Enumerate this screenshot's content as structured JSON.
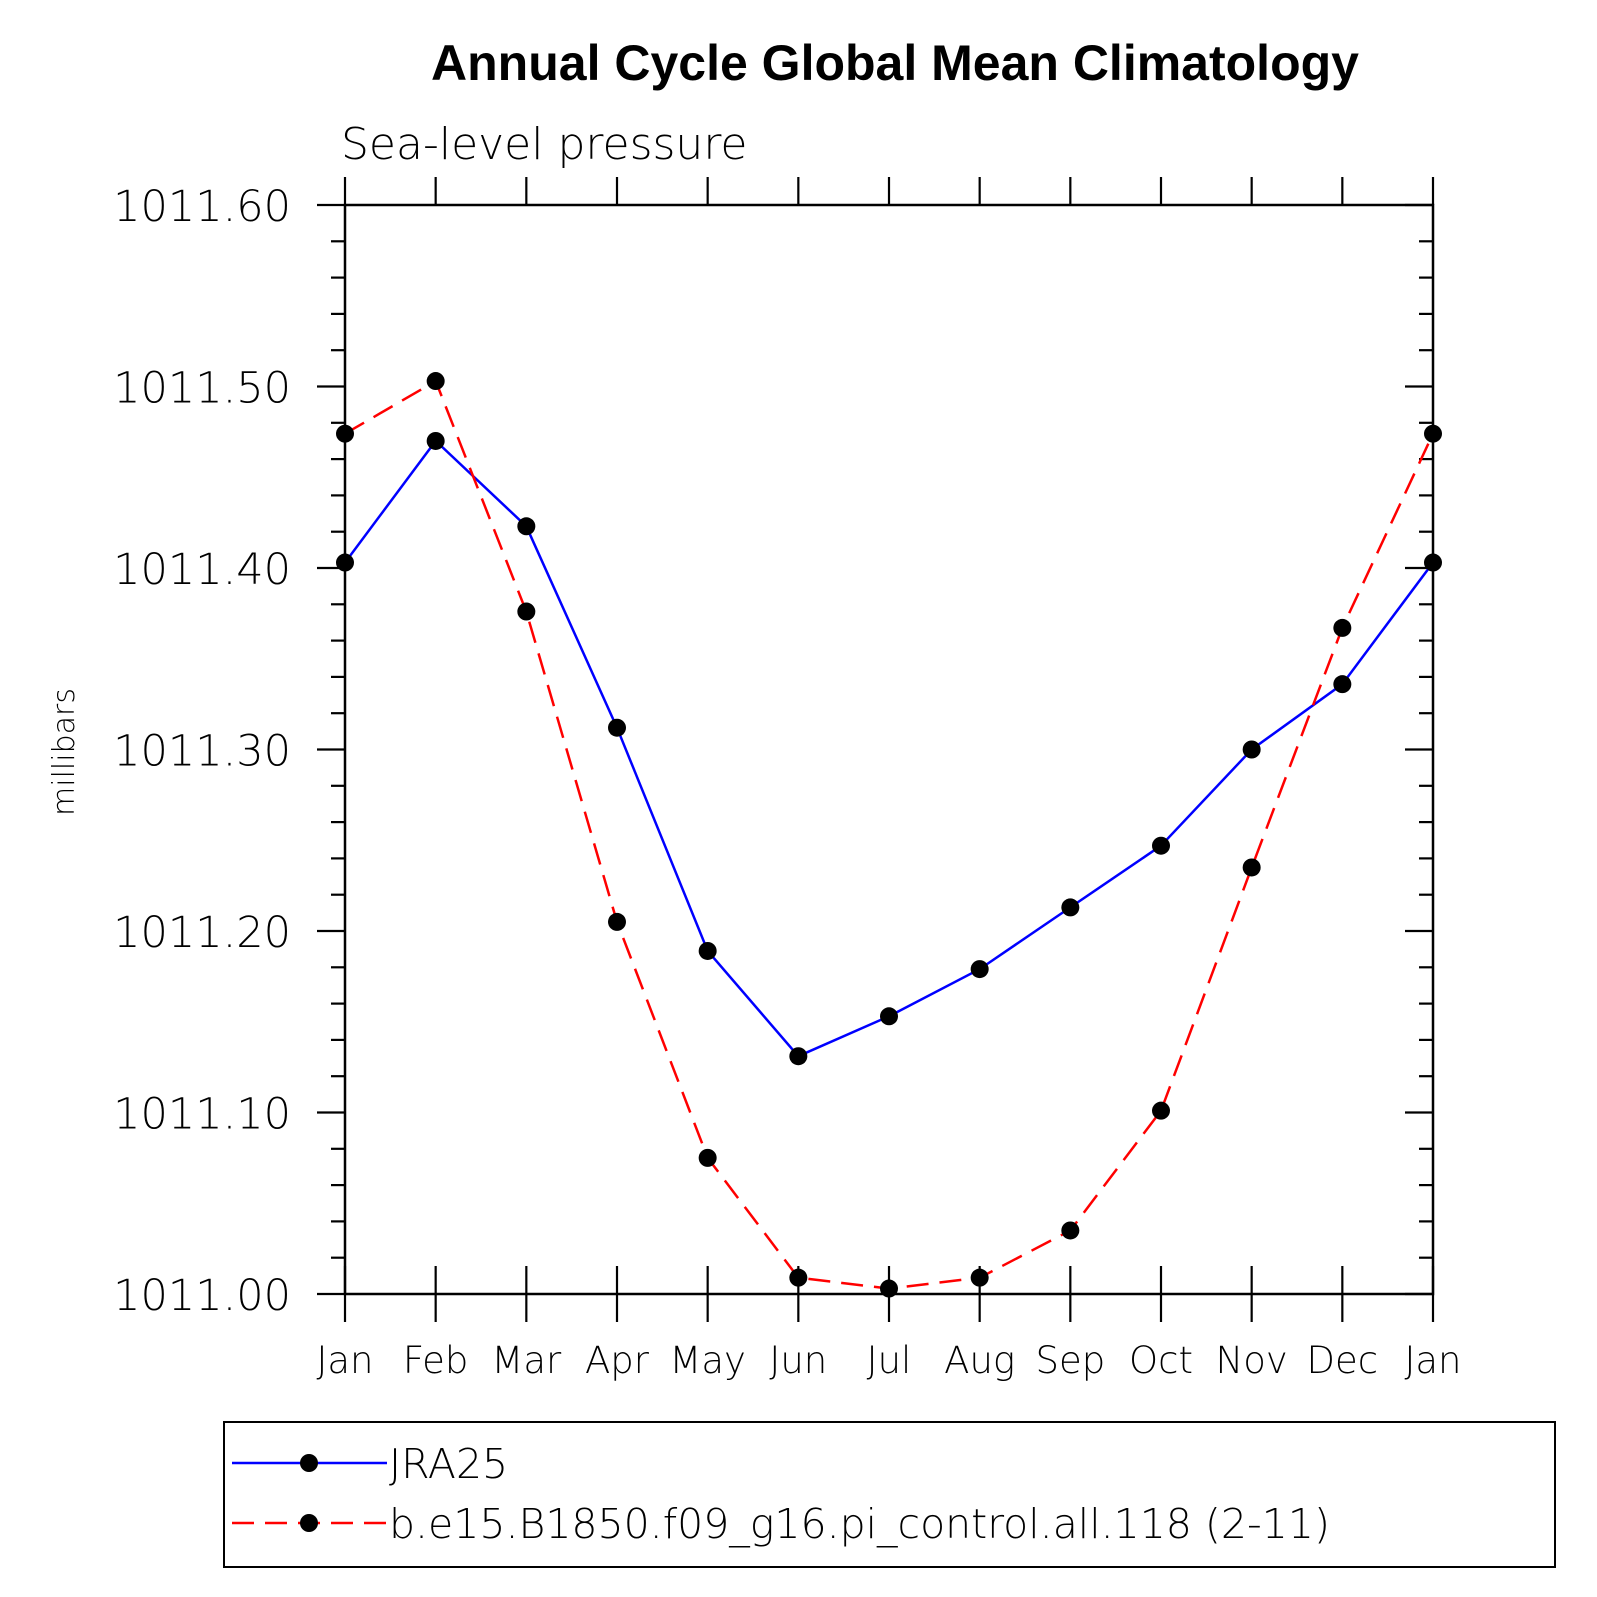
{
  "chart_data": {
    "type": "line",
    "title": "Annual Cycle Global Mean Climatology",
    "subtitle": "Sea-level pressure",
    "xlabel": "",
    "ylabel": "millibars",
    "categories": [
      "Jan",
      "Feb",
      "Mar",
      "Apr",
      "May",
      "Jun",
      "Jul",
      "Aug",
      "Sep",
      "Oct",
      "Nov",
      "Dec",
      "Jan"
    ],
    "ylim": [
      1011.0,
      1011.6
    ],
    "yticks": [
      1011.0,
      1011.1,
      1011.2,
      1011.3,
      1011.4,
      1011.5,
      1011.6
    ],
    "ytick_labels": [
      "1011.00",
      "1011.10",
      "1011.20",
      "1011.30",
      "1011.40",
      "1011.50",
      "1011.60"
    ],
    "grid": false,
    "legend_position": "bottom",
    "series": [
      {
        "name": "JRA25",
        "color": "#0000ff",
        "style": "solid",
        "values": [
          1011.403,
          1011.47,
          1011.423,
          1011.312,
          1011.189,
          1011.131,
          1011.153,
          1011.179,
          1011.213,
          1011.247,
          1011.3,
          1011.336,
          1011.403
        ]
      },
      {
        "name": "b.e15.B1850.f09_g16.pi_control.all.118 (2-11)",
        "color": "#ff0000",
        "style": "dashed",
        "values": [
          1011.474,
          1011.503,
          1011.376,
          1011.205,
          1011.075,
          1011.009,
          1011.003,
          1011.009,
          1011.035,
          1011.101,
          1011.235,
          1011.367,
          1011.474
        ]
      }
    ]
  }
}
